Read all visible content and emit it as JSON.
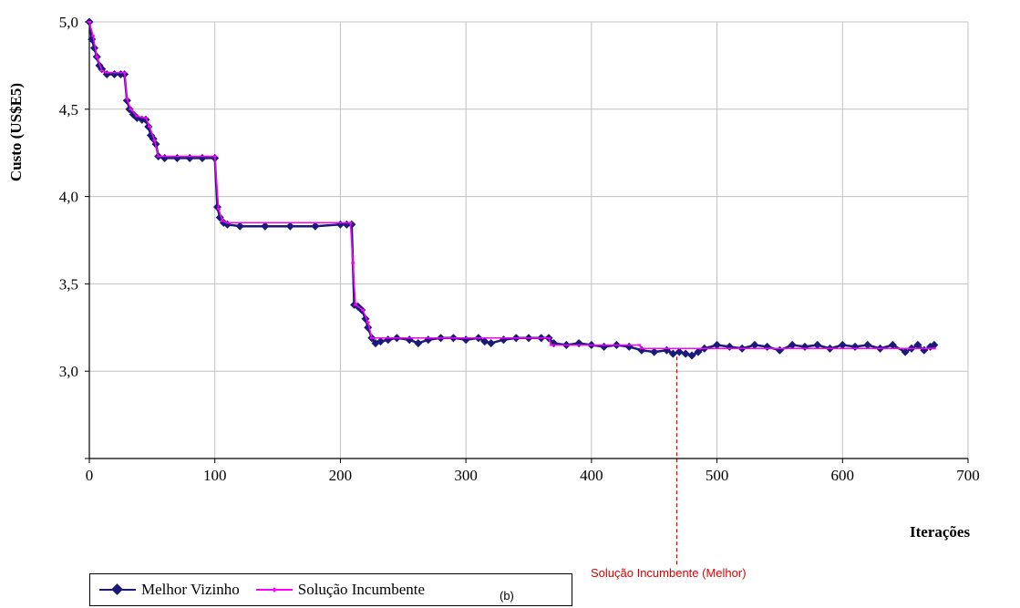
{
  "chart_data": {
    "type": "line",
    "title": "",
    "xlabel": "Iterações",
    "ylabel": "Custo (US$E5)",
    "xlim": [
      0,
      700
    ],
    "ylim": [
      2.5,
      5.0
    ],
    "x_ticks": [
      "0",
      "100",
      "200",
      "300",
      "400",
      "500",
      "600",
      "700"
    ],
    "y_ticks": [
      "3,0",
      "3,5",
      "4,0",
      "4,5",
      "5,0"
    ],
    "grid": true,
    "legend_position": "bottom-left",
    "annotation": {
      "text": "Solução Incumbente (Melhor)",
      "x": 468
    },
    "caption": "(b)",
    "series": [
      {
        "name": "Melhor Vizinho",
        "color": "#1a1a7a",
        "marker": "diamond",
        "points": [
          [
            0,
            5.0
          ],
          [
            2,
            4.9
          ],
          [
            4,
            4.85
          ],
          [
            6,
            4.8
          ],
          [
            8,
            4.75
          ],
          [
            10,
            4.73
          ],
          [
            14,
            4.7
          ],
          [
            20,
            4.7
          ],
          [
            25,
            4.7
          ],
          [
            28,
            4.7
          ],
          [
            30,
            4.55
          ],
          [
            32,
            4.5
          ],
          [
            35,
            4.47
          ],
          [
            38,
            4.45
          ],
          [
            42,
            4.44
          ],
          [
            45,
            4.44
          ],
          [
            47,
            4.4
          ],
          [
            49,
            4.35
          ],
          [
            51,
            4.33
          ],
          [
            53,
            4.3
          ],
          [
            55,
            4.23
          ],
          [
            60,
            4.22
          ],
          [
            70,
            4.22
          ],
          [
            80,
            4.22
          ],
          [
            90,
            4.22
          ],
          [
            100,
            4.22
          ],
          [
            102,
            3.94
          ],
          [
            104,
            3.88
          ],
          [
            107,
            3.85
          ],
          [
            110,
            3.84
          ],
          [
            120,
            3.83
          ],
          [
            140,
            3.83
          ],
          [
            160,
            3.83
          ],
          [
            180,
            3.83
          ],
          [
            200,
            3.84
          ],
          [
            205,
            3.84
          ],
          [
            209,
            3.84
          ],
          [
            211,
            3.38
          ],
          [
            214,
            3.37
          ],
          [
            217,
            3.35
          ],
          [
            220,
            3.3
          ],
          [
            222,
            3.25
          ],
          [
            225,
            3.19
          ],
          [
            228,
            3.16
          ],
          [
            232,
            3.17
          ],
          [
            238,
            3.18
          ],
          [
            245,
            3.19
          ],
          [
            255,
            3.18
          ],
          [
            262,
            3.16
          ],
          [
            270,
            3.18
          ],
          [
            280,
            3.19
          ],
          [
            290,
            3.19
          ],
          [
            300,
            3.18
          ],
          [
            310,
            3.19
          ],
          [
            315,
            3.17
          ],
          [
            320,
            3.16
          ],
          [
            330,
            3.18
          ],
          [
            340,
            3.19
          ],
          [
            350,
            3.19
          ],
          [
            360,
            3.19
          ],
          [
            366,
            3.19
          ],
          [
            370,
            3.16
          ],
          [
            380,
            3.15
          ],
          [
            390,
            3.16
          ],
          [
            400,
            3.15
          ],
          [
            410,
            3.14
          ],
          [
            420,
            3.15
          ],
          [
            430,
            3.14
          ],
          [
            440,
            3.12
          ],
          [
            450,
            3.11
          ],
          [
            460,
            3.12
          ],
          [
            465,
            3.1
          ],
          [
            470,
            3.11
          ],
          [
            475,
            3.1
          ],
          [
            480,
            3.09
          ],
          [
            485,
            3.11
          ],
          [
            490,
            3.13
          ],
          [
            500,
            3.15
          ],
          [
            510,
            3.14
          ],
          [
            520,
            3.13
          ],
          [
            530,
            3.15
          ],
          [
            540,
            3.14
          ],
          [
            550,
            3.12
          ],
          [
            560,
            3.15
          ],
          [
            570,
            3.14
          ],
          [
            580,
            3.15
          ],
          [
            590,
            3.13
          ],
          [
            600,
            3.15
          ],
          [
            610,
            3.14
          ],
          [
            620,
            3.15
          ],
          [
            630,
            3.13
          ],
          [
            640,
            3.15
          ],
          [
            650,
            3.11
          ],
          [
            655,
            3.13
          ],
          [
            660,
            3.15
          ],
          [
            665,
            3.12
          ],
          [
            670,
            3.14
          ],
          [
            673,
            3.15
          ]
        ]
      },
      {
        "name": "Solução Incumbente",
        "color": "#ff00ff",
        "marker": "dash",
        "points": [
          [
            0,
            5.0
          ],
          [
            3,
            4.92
          ],
          [
            6,
            4.8
          ],
          [
            10,
            4.72
          ],
          [
            14,
            4.71
          ],
          [
            28,
            4.71
          ],
          [
            30,
            4.56
          ],
          [
            33,
            4.5
          ],
          [
            38,
            4.46
          ],
          [
            45,
            4.45
          ],
          [
            48,
            4.4
          ],
          [
            52,
            4.32
          ],
          [
            55,
            4.23
          ],
          [
            100,
            4.23
          ],
          [
            103,
            3.93
          ],
          [
            106,
            3.86
          ],
          [
            110,
            3.85
          ],
          [
            208,
            3.85
          ],
          [
            210,
            3.62
          ],
          [
            212,
            3.38
          ],
          [
            218,
            3.35
          ],
          [
            222,
            3.28
          ],
          [
            225,
            3.19
          ],
          [
            366,
            3.19
          ],
          [
            368,
            3.15
          ],
          [
            438,
            3.15
          ],
          [
            440,
            3.13
          ],
          [
            673,
            3.13
          ]
        ]
      }
    ]
  }
}
